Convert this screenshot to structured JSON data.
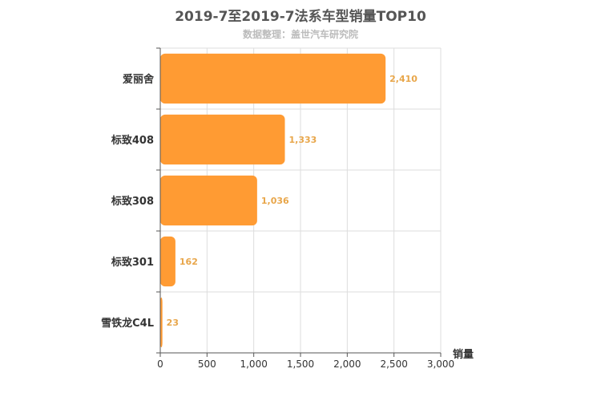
{
  "chart_data": {
    "type": "bar",
    "orientation": "horizontal",
    "title": "2019-7至2019-7法系车型销量TOP10",
    "subtitle": "数据整理：盖世汽车研究院",
    "categories": [
      "爱丽舍",
      "标致408",
      "标致308",
      "标致301",
      "雪铁龙C4L"
    ],
    "values": [
      2410,
      1333,
      1036,
      162,
      23
    ],
    "value_labels": [
      "2,410",
      "1,333",
      "1,036",
      "162",
      "23"
    ],
    "xlabel": "销量",
    "ylabel": "",
    "xlim": [
      0,
      3000
    ],
    "xticks": [
      0,
      500,
      1000,
      1500,
      2000,
      2500,
      3000
    ],
    "xtick_labels": [
      "0",
      "500",
      "1,000",
      "1,500",
      "2,000",
      "2,500",
      "3,000"
    ],
    "grid": true,
    "colors": {
      "bar": "#ff9b33",
      "data_label": "#e8a64a",
      "grid": "#dddddd",
      "axis": "#555555"
    }
  }
}
